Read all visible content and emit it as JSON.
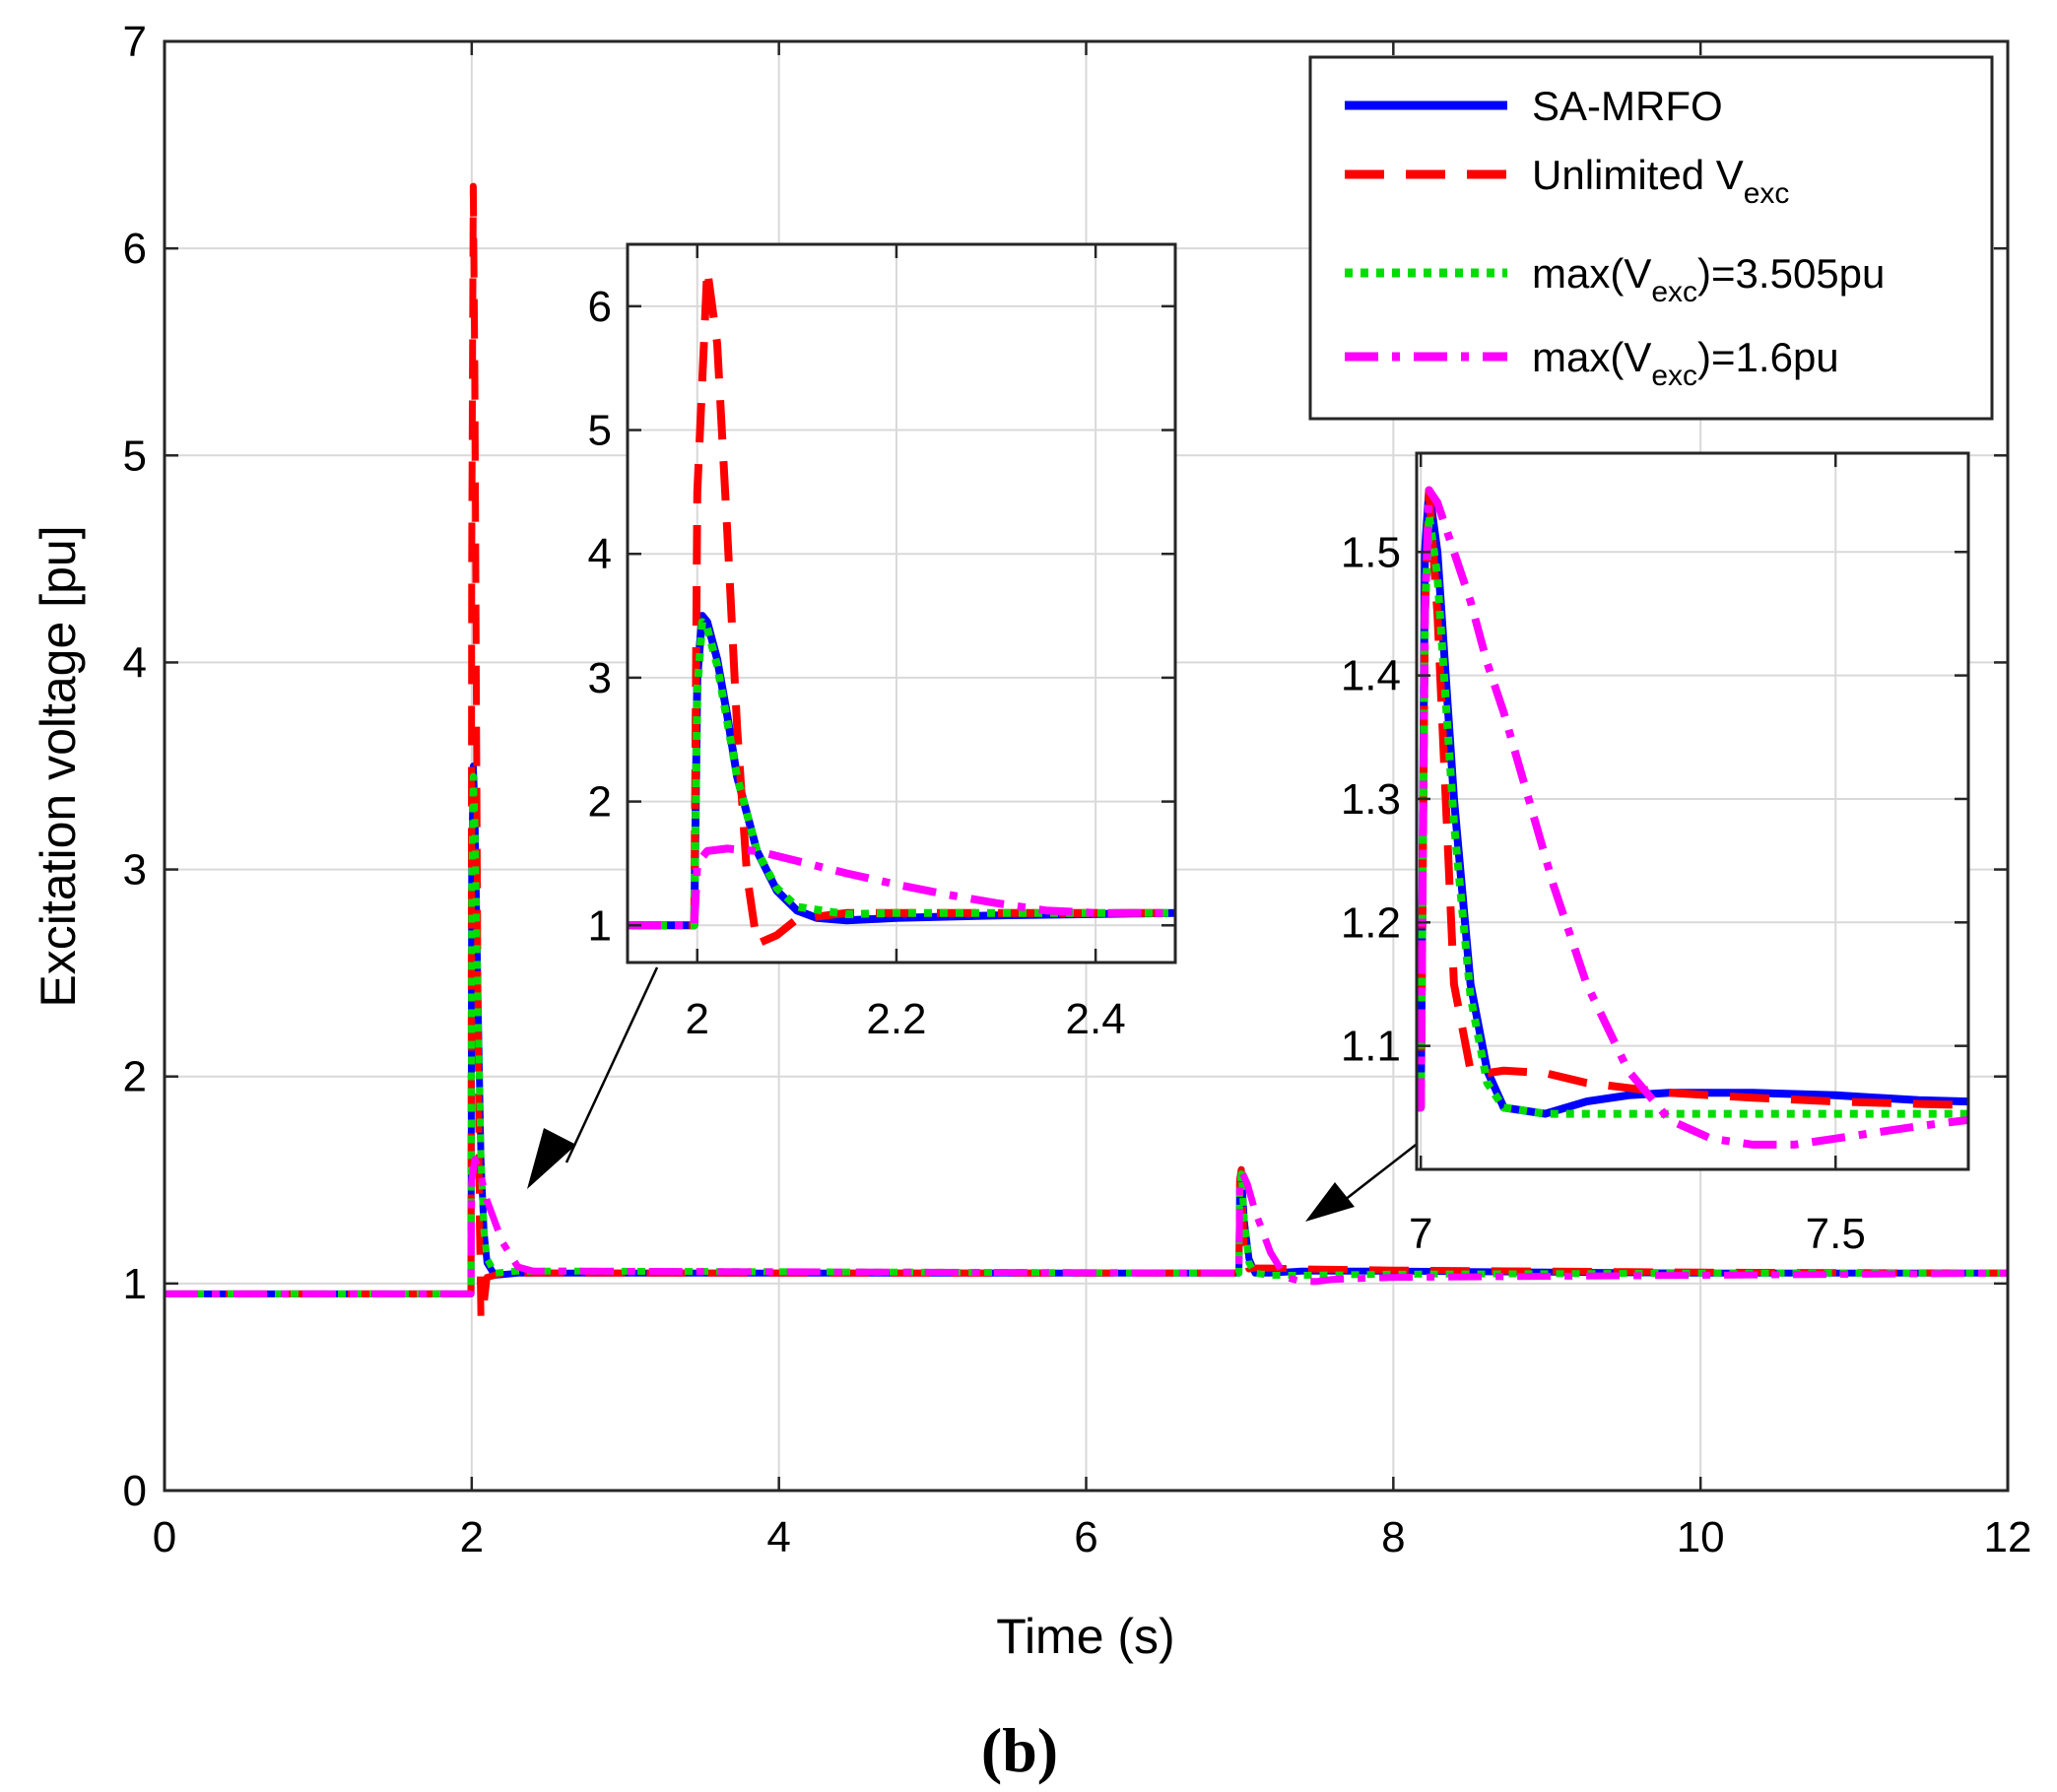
{
  "figure": {
    "panel_label": "(b)"
  },
  "colors": {
    "sa_mrfo": "#0000ff",
    "unlimited": "#ff0000",
    "max3505": "#00dd00",
    "max16": "#ff00ff",
    "grid": "#d9d9d9",
    "axes": "#262626"
  },
  "legend": {
    "position": "top-right",
    "entries": [
      {
        "key": "sa_mrfo",
        "text": "SA-MRFO"
      },
      {
        "key": "unlimited",
        "pre": "Unlimited V",
        "sub": "exc"
      },
      {
        "key": "max3505",
        "pre": "max(V",
        "sub": "exc",
        "post": ")=3.505pu"
      },
      {
        "key": "max16",
        "pre": "max(V",
        "sub": "exc",
        "post": ")=1.6pu"
      }
    ]
  },
  "chart_data": [
    {
      "id": "main",
      "type": "line",
      "title": "",
      "xlabel": "Time (s)",
      "ylabel": "Excitation voltage [pu]",
      "xlim": [
        0,
        12
      ],
      "ylim": [
        0,
        7
      ],
      "xticks": [
        0,
        2,
        4,
        6,
        8,
        10,
        12
      ],
      "yticks": [
        0,
        1,
        2,
        3,
        4,
        5,
        6,
        7
      ],
      "grid": true,
      "series": [
        {
          "name": "SA-MRFO",
          "key": "sa_mrfo",
          "x": [
            0,
            1.995,
            2.0,
            2.01,
            2.02,
            2.04,
            2.06,
            2.08,
            2.1,
            2.15,
            2.3,
            2.5,
            6.995,
            7.0,
            7.01,
            7.03,
            7.06,
            7.1,
            7.2,
            7.4,
            8,
            9,
            10,
            12
          ],
          "y": [
            0.95,
            0.95,
            3.0,
            3.5,
            3.3,
            2.4,
            1.6,
            1.25,
            1.1,
            1.04,
            1.05,
            1.05,
            1.05,
            1.5,
            1.55,
            1.3,
            1.12,
            1.05,
            1.05,
            1.06,
            1.06,
            1.055,
            1.05,
            1.05
          ]
        },
        {
          "name": "Unlimited Vexc",
          "key": "unlimited",
          "x": [
            0,
            1.995,
            2.0,
            2.01,
            2.02,
            2.03,
            2.04,
            2.05,
            2.06,
            2.08,
            2.1,
            2.2,
            2.5,
            6.995,
            7.0,
            7.01,
            7.03,
            7.06,
            7.1,
            7.2,
            7.4,
            8,
            10,
            12
          ],
          "y": [
            0.95,
            0.95,
            4.5,
            6.3,
            5.4,
            3.9,
            2.4,
            1.3,
            0.83,
            0.9,
            1.03,
            1.05,
            1.05,
            1.05,
            1.5,
            1.55,
            1.15,
            1.07,
            1.075,
            1.075,
            1.07,
            1.065,
            1.055,
            1.05
          ]
        },
        {
          "name": "max(Vexc)=3.505pu",
          "key": "max3505",
          "x": [
            0,
            1.995,
            2.0,
            2.01,
            2.02,
            2.04,
            2.06,
            2.08,
            2.1,
            2.15,
            2.3,
            2.5,
            6.995,
            7.0,
            7.01,
            7.03,
            7.06,
            7.1,
            7.2,
            7.4,
            8,
            10,
            12
          ],
          "y": [
            0.95,
            0.95,
            2.9,
            3.45,
            3.25,
            2.35,
            1.6,
            1.25,
            1.12,
            1.05,
            1.06,
            1.06,
            1.05,
            1.45,
            1.53,
            1.3,
            1.1,
            1.05,
            1.04,
            1.04,
            1.045,
            1.05,
            1.05
          ]
        },
        {
          "name": "max(Vexc)=1.6pu",
          "key": "max16",
          "x": [
            0,
            1.995,
            2.0,
            2.02,
            2.05,
            2.1,
            2.2,
            2.3,
            2.4,
            2.5,
            6.995,
            7.0,
            7.02,
            7.05,
            7.1,
            7.2,
            7.3,
            7.4,
            7.5,
            7.6,
            8,
            10,
            12
          ],
          "y": [
            0.95,
            0.95,
            1.5,
            1.6,
            1.55,
            1.4,
            1.2,
            1.08,
            1.06,
            1.06,
            1.05,
            1.45,
            1.53,
            1.48,
            1.35,
            1.15,
            1.03,
            1.01,
            1.01,
            1.02,
            1.03,
            1.04,
            1.05
          ]
        }
      ]
    },
    {
      "id": "inset1",
      "type": "line",
      "xlim": [
        1.93,
        2.48
      ],
      "ylim": [
        0.7,
        6.5
      ],
      "xticks": [
        2,
        2.2,
        2.4
      ],
      "yticks": [
        1,
        2,
        3,
        4,
        5,
        6
      ],
      "grid": true,
      "series": [
        {
          "name": "SA-MRFO",
          "key": "sa_mrfo",
          "x": [
            1.93,
            1.997,
            2.0,
            2.005,
            2.01,
            2.02,
            2.03,
            2.04,
            2.06,
            2.08,
            2.1,
            2.12,
            2.15,
            2.2,
            2.3,
            2.48
          ],
          "y": [
            1.0,
            1.0,
            3.0,
            3.5,
            3.45,
            3.15,
            2.7,
            2.2,
            1.6,
            1.28,
            1.12,
            1.06,
            1.04,
            1.06,
            1.08,
            1.1
          ]
        },
        {
          "name": "Unlimited Vexc",
          "key": "unlimited",
          "x": [
            1.93,
            1.997,
            2.0,
            2.01,
            2.02,
            2.03,
            2.04,
            2.05,
            2.06,
            2.08,
            2.1,
            2.15,
            2.2,
            2.3,
            2.48
          ],
          "y": [
            1.0,
            1.0,
            4.5,
            6.3,
            5.7,
            4.2,
            2.6,
            1.4,
            0.85,
            0.92,
            1.05,
            1.1,
            1.1,
            1.1,
            1.1
          ]
        },
        {
          "name": "max(Vexc)=3.505pu",
          "key": "max3505",
          "x": [
            1.93,
            1.997,
            2.0,
            2.005,
            2.01,
            2.02,
            2.03,
            2.04,
            2.06,
            2.08,
            2.1,
            2.15,
            2.2,
            2.3,
            2.48
          ],
          "y": [
            1.0,
            1.0,
            2.9,
            3.45,
            3.4,
            3.1,
            2.65,
            2.2,
            1.6,
            1.3,
            1.15,
            1.09,
            1.1,
            1.1,
            1.1
          ]
        },
        {
          "name": "max(Vexc)=1.6pu",
          "key": "max16",
          "x": [
            1.93,
            1.997,
            2.0,
            2.01,
            2.03,
            2.06,
            2.1,
            2.15,
            2.2,
            2.25,
            2.3,
            2.35,
            2.4,
            2.48
          ],
          "y": [
            1.0,
            1.0,
            1.5,
            1.6,
            1.62,
            1.6,
            1.52,
            1.42,
            1.33,
            1.25,
            1.18,
            1.12,
            1.1,
            1.1
          ]
        }
      ]
    },
    {
      "id": "inset2",
      "type": "line",
      "xlim": [
        6.995,
        7.66
      ],
      "ylim": [
        1.0,
        1.58
      ],
      "xticks": [
        7,
        7.5
      ],
      "yticks": [
        1.1,
        1.2,
        1.3,
        1.4,
        1.5
      ],
      "grid": true,
      "series": [
        {
          "name": "SA-MRFO",
          "key": "sa_mrfo",
          "x": [
            6.995,
            7.0,
            7.005,
            7.01,
            7.02,
            7.04,
            7.06,
            7.08,
            7.1,
            7.15,
            7.2,
            7.25,
            7.3,
            7.4,
            7.5,
            7.6,
            7.66
          ],
          "y": [
            1.05,
            1.05,
            1.5,
            1.55,
            1.5,
            1.3,
            1.15,
            1.08,
            1.05,
            1.045,
            1.055,
            1.06,
            1.062,
            1.062,
            1.06,
            1.056,
            1.055
          ]
        },
        {
          "name": "Unlimited Vexc",
          "key": "unlimited",
          "x": [
            6.995,
            7.0,
            7.005,
            7.01,
            7.02,
            7.03,
            7.04,
            7.06,
            7.08,
            7.1,
            7.15,
            7.2,
            7.3,
            7.4,
            7.5,
            7.6,
            7.66
          ],
          "y": [
            1.05,
            1.05,
            1.45,
            1.55,
            1.45,
            1.3,
            1.15,
            1.08,
            1.078,
            1.08,
            1.078,
            1.07,
            1.062,
            1.058,
            1.055,
            1.053,
            1.052
          ]
        },
        {
          "name": "max(Vexc)=3.505pu",
          "key": "max3505",
          "x": [
            6.995,
            7.0,
            7.005,
            7.01,
            7.02,
            7.04,
            7.06,
            7.08,
            7.1,
            7.15,
            7.2,
            7.3,
            7.4,
            7.5,
            7.6,
            7.66
          ],
          "y": [
            1.05,
            1.05,
            1.45,
            1.53,
            1.48,
            1.28,
            1.14,
            1.07,
            1.05,
            1.045,
            1.045,
            1.045,
            1.045,
            1.045,
            1.045,
            1.045
          ]
        },
        {
          "name": "max(Vexc)=1.6pu",
          "key": "max16",
          "x": [
            6.995,
            7.0,
            7.005,
            7.01,
            7.02,
            7.04,
            7.06,
            7.08,
            7.1,
            7.13,
            7.16,
            7.2,
            7.25,
            7.3,
            7.35,
            7.4,
            7.45,
            7.5,
            7.55,
            7.6,
            7.66
          ],
          "y": [
            1.05,
            1.05,
            1.45,
            1.55,
            1.54,
            1.5,
            1.46,
            1.41,
            1.37,
            1.3,
            1.23,
            1.15,
            1.08,
            1.04,
            1.025,
            1.02,
            1.02,
            1.025,
            1.03,
            1.035,
            1.04
          ]
        }
      ]
    }
  ]
}
